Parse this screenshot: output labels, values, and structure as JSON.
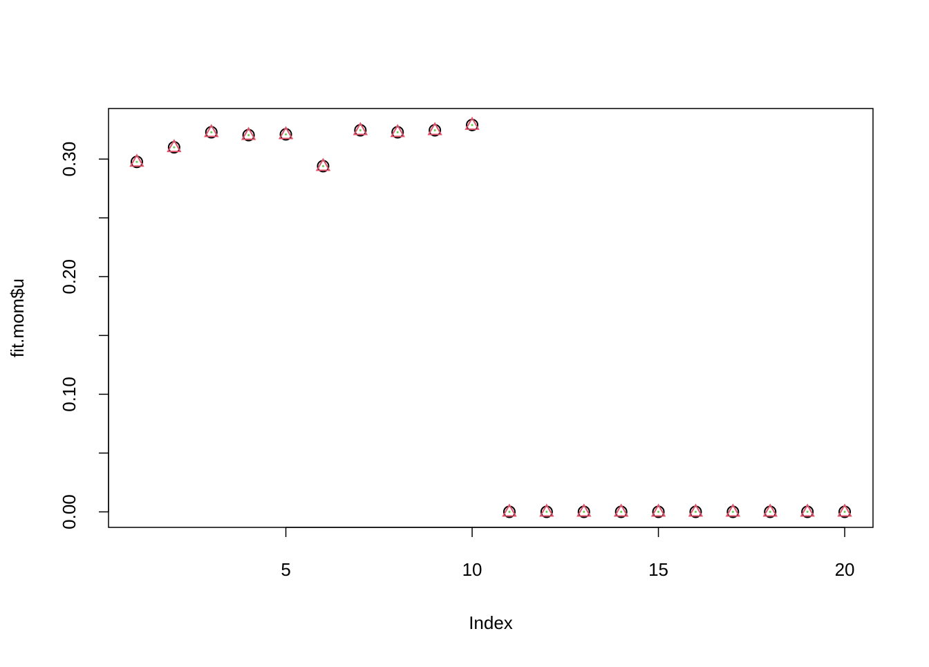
{
  "chart_data": {
    "type": "scatter",
    "x_label": "Index",
    "y_label": "fit.mom$u",
    "x": [
      1,
      2,
      3,
      4,
      5,
      6,
      7,
      8,
      9,
      10,
      11,
      12,
      13,
      14,
      15,
      16,
      17,
      18,
      19,
      20
    ],
    "series": [
      {
        "color": "#000000",
        "marker": "circle",
        "values": [
          0.2976,
          0.31,
          0.3228,
          0.3204,
          0.321,
          0.294,
          0.3245,
          0.3228,
          0.3245,
          0.329,
          0,
          0,
          0,
          0,
          0,
          0,
          0,
          0,
          0,
          0
        ]
      },
      {
        "color": "#DF536B",
        "marker": "triangle",
        "values": [
          0.2976,
          0.31,
          0.3228,
          0.3204,
          0.321,
          0.294,
          0.3245,
          0.3228,
          0.3245,
          0.329,
          0,
          0,
          0,
          0,
          0,
          0,
          0,
          0,
          0,
          0
        ]
      },
      {
        "color": "#61D04F",
        "marker": "dot",
        "values": [
          0.2976,
          0.31,
          0.3228,
          0.3204,
          0.321,
          0.294,
          0.3245,
          0.3228,
          0.3245,
          0.329,
          0,
          0,
          0,
          0,
          0,
          0,
          0,
          0,
          0,
          0
        ]
      }
    ],
    "xlim": [
      0.24,
      20.76
    ],
    "ylim": [
      -0.0132,
      0.343
    ],
    "xticks": [
      5,
      10,
      15,
      20
    ],
    "yticks": [
      {
        "value": 0,
        "label": "0.00"
      },
      {
        "value": 0.1,
        "label": "0.10"
      },
      {
        "value": 0.2,
        "label": "0.20"
      },
      {
        "value": 0.3,
        "label": "0.30"
      }
    ],
    "yminor_ticks": [
      0.05,
      0.15,
      0.25
    ]
  }
}
